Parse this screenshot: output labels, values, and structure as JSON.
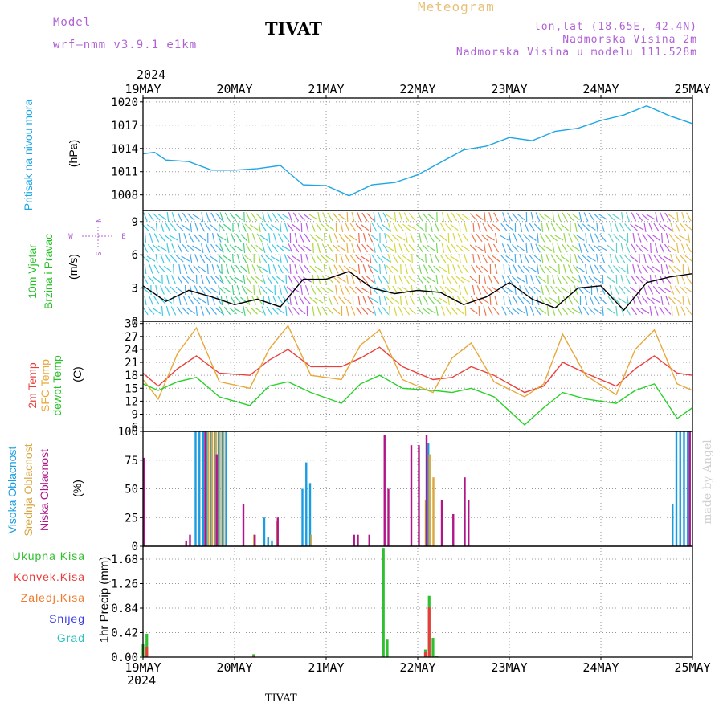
{
  "header": {
    "model_label": "Model",
    "model_name": "wrf—nmm_v3.9.1  e1km",
    "station_title": "TIVAT",
    "meteogram_label": "Meteogram",
    "coords": "lon,lat (18.65E, 42.4N)",
    "altitude": "Nadmorska Visina 2m",
    "model_altitude": "Nadmorska Visina u modelu 111.528m",
    "year_top": "2024",
    "year_bottom": "2024",
    "footer_station": "TIVAT",
    "credit": "made by Angel"
  },
  "colors": {
    "pressure": "#1ea6e6",
    "temp2m": "#e8413d",
    "sfc": "#e8a83a",
    "dewpt": "#27d127",
    "high_cloud": "#1a9ce0",
    "mid_cloud": "#d9a640",
    "low_cloud": "#b0168a",
    "total_precip": "#2fbf2f",
    "conv_precip": "#e83c3c",
    "frozen_precip": "#f07a2c",
    "snow": "#3b3be6",
    "hail": "#2fc0c0",
    "purple": "#b061d6",
    "credit": "#cfcfcf"
  },
  "chart_data": [
    {
      "type": "line",
      "panel": "pressure",
      "ylabel_lines": [
        "Pritisak na nivou mora",
        "(hPa)"
      ],
      "ylim": [
        1006,
        1020.5
      ],
      "yticks": [
        1008,
        1011,
        1014,
        1017,
        1020
      ],
      "x_start": "2024-05-19 00:00",
      "x_end": "2024-05-25 00:00",
      "x_ticks": [
        "19MAY",
        "20MAY",
        "21MAY",
        "22MAY",
        "23MAY",
        "24MAY",
        "25MAY"
      ],
      "series": [
        {
          "color_key": "pressure",
          "x": [
            "2024-05-19 00:00",
            "2024-05-19 03:00",
            "2024-05-19 06:00",
            "2024-05-19 12:00",
            "2024-05-19 18:00",
            "2024-05-20 00:00",
            "2024-05-20 06:00",
            "2024-05-20 12:00",
            "2024-05-20 18:00",
            "2024-05-21 00:00",
            "2024-05-21 06:00",
            "2024-05-21 12:00",
            "2024-05-21 18:00",
            "2024-05-22 00:00",
            "2024-05-22 06:00",
            "2024-05-22 12:00",
            "2024-05-22 18:00",
            "2024-05-23 00:00",
            "2024-05-23 06:00",
            "2024-05-23 12:00",
            "2024-05-23 18:00",
            "2024-05-24 00:00",
            "2024-05-24 06:00",
            "2024-05-24 12:00",
            "2024-05-24 18:00",
            "2024-05-25 00:00"
          ],
          "y": [
            1013.3,
            1013.5,
            1012.5,
            1012.3,
            1011.2,
            1011.2,
            1011.4,
            1011.8,
            1009.3,
            1009.2,
            1007.9,
            1009.3,
            1009.6,
            1010.6,
            1012.2,
            1013.8,
            1014.3,
            1015.4,
            1015.0,
            1016.2,
            1016.6,
            1017.6,
            1018.3,
            1019.5,
            1018.2,
            1017.2
          ]
        }
      ]
    },
    {
      "type": "line",
      "panel": "wind",
      "ylabel_lines": [
        "10m Vjetar",
        "Brzina i Pravac",
        "(m/s)"
      ],
      "compass": [
        "N",
        "E",
        "W",
        "S"
      ],
      "ylim": [
        0,
        10
      ],
      "yticks": [
        0,
        3,
        6,
        9
      ],
      "series": [
        {
          "color": "#000000",
          "x": [
            "2024-05-19 00:00",
            "2024-05-19 06:00",
            "2024-05-19 12:00",
            "2024-05-19 18:00",
            "2024-05-20 00:00",
            "2024-05-20 06:00",
            "2024-05-20 12:00",
            "2024-05-20 18:00",
            "2024-05-21 00:00",
            "2024-05-21 06:00",
            "2024-05-21 12:00",
            "2024-05-21 18:00",
            "2024-05-22 00:00",
            "2024-05-22 06:00",
            "2024-05-22 12:00",
            "2024-05-22 18:00",
            "2024-05-23 00:00",
            "2024-05-23 06:00",
            "2024-05-23 12:00",
            "2024-05-23 18:00",
            "2024-05-24 00:00",
            "2024-05-24 06:00",
            "2024-05-24 12:00",
            "2024-05-24 18:00",
            "2024-05-25 00:00"
          ],
          "y": [
            3.2,
            1.8,
            2.8,
            2.2,
            1.5,
            2.0,
            1.3,
            3.8,
            3.8,
            4.5,
            3.0,
            2.5,
            2.8,
            2.6,
            1.5,
            2.2,
            3.5,
            2.0,
            1.2,
            3.0,
            3.2,
            1.0,
            3.5,
            4.0,
            4.3
          ]
        }
      ]
    },
    {
      "type": "line",
      "panel": "temperature",
      "ylabel_lines": [
        "2m Temp",
        "SFC Temp",
        "dewpt Temp",
        "(C)"
      ],
      "ylim": [
        5,
        30.5
      ],
      "yticks": [
        6,
        9,
        12,
        15,
        18,
        21,
        24,
        27,
        30
      ],
      "series": [
        {
          "name": "2m Temp",
          "color_key": "temp2m",
          "x": [
            "2024-05-19 00:00",
            "2024-05-19 04:00",
            "2024-05-19 09:00",
            "2024-05-19 14:00",
            "2024-05-19 20:00",
            "2024-05-20 04:00",
            "2024-05-20 09:00",
            "2024-05-20 14:00",
            "2024-05-20 20:00",
            "2024-05-21 04:00",
            "2024-05-21 09:00",
            "2024-05-21 14:00",
            "2024-05-21 20:00",
            "2024-05-22 04:00",
            "2024-05-22 09:00",
            "2024-05-22 14:00",
            "2024-05-22 20:00",
            "2024-05-23 04:00",
            "2024-05-23 09:00",
            "2024-05-23 14:00",
            "2024-05-23 20:00",
            "2024-05-24 04:00",
            "2024-05-24 09:00",
            "2024-05-24 14:00",
            "2024-05-24 20:00",
            "2024-05-25 00:00"
          ],
          "y": [
            18.5,
            15.5,
            19.5,
            22.5,
            18.5,
            18.0,
            21.5,
            24.0,
            20.0,
            20.0,
            22.0,
            24.5,
            20.0,
            17.0,
            17.5,
            20.0,
            18.0,
            14.0,
            15.5,
            21.0,
            18.5,
            15.5,
            19.5,
            22.5,
            18.5,
            18.0
          ]
        },
        {
          "name": "SFC Temp",
          "color_key": "sfc",
          "x": [
            "2024-05-19 00:00",
            "2024-05-19 04:00",
            "2024-05-19 09:00",
            "2024-05-19 14:00",
            "2024-05-19 20:00",
            "2024-05-20 04:00",
            "2024-05-20 09:00",
            "2024-05-20 14:00",
            "2024-05-20 20:00",
            "2024-05-21 04:00",
            "2024-05-21 09:00",
            "2024-05-21 14:00",
            "2024-05-21 20:00",
            "2024-05-22 04:00",
            "2024-05-22 09:00",
            "2024-05-22 14:00",
            "2024-05-22 20:00",
            "2024-05-23 04:00",
            "2024-05-23 09:00",
            "2024-05-23 14:00",
            "2024-05-23 20:00",
            "2024-05-24 04:00",
            "2024-05-24 09:00",
            "2024-05-24 14:00",
            "2024-05-24 20:00",
            "2024-05-25 00:00"
          ],
          "y": [
            17.0,
            12.5,
            23.0,
            29.0,
            16.5,
            15.0,
            24.0,
            29.5,
            18.0,
            17.0,
            25.0,
            28.5,
            17.0,
            14.0,
            22.0,
            25.5,
            16.5,
            13.0,
            16.0,
            27.5,
            18.0,
            13.5,
            24.0,
            28.5,
            16.0,
            14.5
          ]
        },
        {
          "name": "dewpt Temp",
          "color_key": "dewpt",
          "x": [
            "2024-05-19 00:00",
            "2024-05-19 04:00",
            "2024-05-19 09:00",
            "2024-05-19 14:00",
            "2024-05-19 20:00",
            "2024-05-20 04:00",
            "2024-05-20 09:00",
            "2024-05-20 14:00",
            "2024-05-20 20:00",
            "2024-05-21 04:00",
            "2024-05-21 09:00",
            "2024-05-21 14:00",
            "2024-05-21 20:00",
            "2024-05-22 04:00",
            "2024-05-22 09:00",
            "2024-05-22 14:00",
            "2024-05-22 20:00",
            "2024-05-23 04:00",
            "2024-05-23 09:00",
            "2024-05-23 14:00",
            "2024-05-23 20:00",
            "2024-05-24 04:00",
            "2024-05-24 09:00",
            "2024-05-24 14:00",
            "2024-05-24 20:00",
            "2024-05-25 00:00"
          ],
          "y": [
            16.0,
            14.5,
            16.5,
            17.5,
            13.0,
            11.0,
            15.5,
            16.5,
            14.0,
            11.5,
            16.0,
            18.0,
            15.0,
            14.5,
            14.0,
            15.0,
            13.0,
            6.5,
            10.5,
            14.0,
            12.5,
            11.5,
            14.5,
            16.0,
            8.0,
            10.5
          ]
        }
      ]
    },
    {
      "type": "bar",
      "panel": "cloud",
      "ylabel_lines": [
        "Visoka Oblacnost",
        "Srednja Oblacnost",
        "Niska Oblacnost",
        "(%)"
      ],
      "ylim": [
        0,
        100
      ],
      "yticks": [
        0,
        25,
        50,
        75,
        100
      ],
      "series": [
        {
          "name": "Visoka Oblacnost",
          "color_key": "high_cloud",
          "x": [
            "2024-05-19 14:00",
            "2024-05-19 15:00",
            "2024-05-19 16:00",
            "2024-05-19 17:00",
            "2024-05-19 18:00",
            "2024-05-19 19:00",
            "2024-05-19 20:00",
            "2024-05-19 21:00",
            "2024-05-19 22:00",
            "2024-05-20 08:00",
            "2024-05-20 09:00",
            "2024-05-20 10:00",
            "2024-05-20 18:00",
            "2024-05-20 19:00",
            "2024-05-20 20:00",
            "2024-05-22 03:00",
            "2024-05-24 19:00",
            "2024-05-24 20:00",
            "2024-05-24 21:00",
            "2024-05-24 22:00",
            "2024-05-24 23:00"
          ],
          "values": [
            100,
            100,
            100,
            100,
            100,
            100,
            100,
            100,
            100,
            25,
            8,
            5,
            50,
            73,
            55,
            90,
            37,
            100,
            100,
            100,
            100
          ]
        },
        {
          "name": "Srednja Oblacnost",
          "color_key": "mid_cloud",
          "x": [
            "2024-05-19 17:00",
            "2024-05-19 18:00",
            "2024-05-19 19:00",
            "2024-05-19 20:00",
            "2024-05-19 21:00",
            "2024-05-20 05:00",
            "2024-05-20 11:00",
            "2024-05-20 20:00",
            "2024-05-22 02:00",
            "2024-05-22 03:00",
            "2024-05-22 04:00"
          ],
          "values": [
            100,
            100,
            100,
            100,
            100,
            10,
            22,
            10,
            40,
            80,
            60
          ]
        },
        {
          "name": "Niska Oblacnost",
          "color_key": "low_cloud",
          "x": [
            "2024-05-19 00:00",
            "2024-05-19 11:00",
            "2024-05-19 12:00",
            "2024-05-19 16:00",
            "2024-05-19 19:00",
            "2024-05-20 02:00",
            "2024-05-20 05:00",
            "2024-05-20 11:00",
            "2024-05-21 07:00",
            "2024-05-21 08:00",
            "2024-05-21 11:00",
            "2024-05-21 15:00",
            "2024-05-21 16:00",
            "2024-05-21 22:00",
            "2024-05-22 00:00",
            "2024-05-22 02:00",
            "2024-05-22 06:00",
            "2024-05-22 09:00",
            "2024-05-22 12:00",
            "2024-05-22 13:00",
            "2024-05-24 23:00"
          ],
          "values": [
            77,
            5,
            10,
            100,
            80,
            37,
            10,
            25,
            10,
            10,
            10,
            97,
            50,
            88,
            88,
            97,
            40,
            28,
            60,
            40,
            100
          ]
        }
      ]
    },
    {
      "type": "bar",
      "panel": "precip",
      "ylabel_lines": [
        "1hr Precip (mm)"
      ],
      "legend": [
        "Ukupna Kisa",
        "Konvek.Kisa",
        "Zaledj.Kisa",
        "Snijeg",
        "Grad"
      ],
      "ylim": [
        0,
        1.9
      ],
      "yticks": [
        0,
        0.42,
        0.84,
        1.26,
        1.68
      ],
      "series": [
        {
          "name": "Ukupna Kisa",
          "color_key": "total_precip",
          "x": [
            "2024-05-19 00:00",
            "2024-05-19 01:00",
            "2024-05-20 05:00",
            "2024-05-21 15:00",
            "2024-05-21 16:00",
            "2024-05-22 02:00",
            "2024-05-22 03:00",
            "2024-05-22 04:00",
            "2024-05-22 05:00"
          ],
          "values": [
            0.22,
            0.4,
            0.05,
            1.87,
            0.3,
            0.13,
            1.05,
            0.33,
            0.02
          ]
        },
        {
          "name": "Konvek.Kisa",
          "color_key": "conv_precip",
          "x": [
            "2024-05-19 01:00",
            "2024-05-20 05:00",
            "2024-05-22 02:00",
            "2024-05-22 03:00"
          ],
          "values": [
            0.18,
            0.03,
            0.08,
            0.85
          ]
        }
      ]
    }
  ]
}
